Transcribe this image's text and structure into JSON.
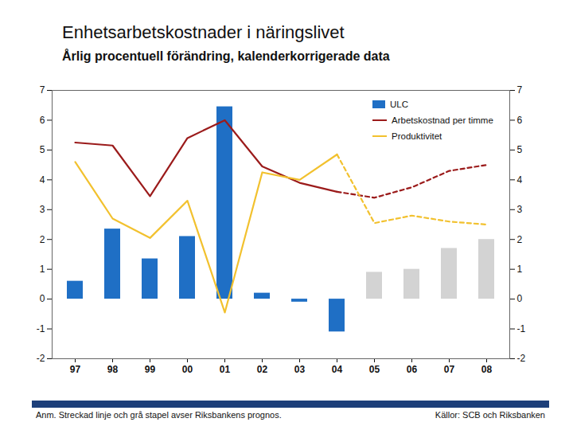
{
  "chart_data": {
    "type": "bar",
    "title": "Enhetsarbetskostnader i näringslivet",
    "subtitle": "Årlig procentuell förändring, kalenderkorrigerade data",
    "note": "Anm. Streckad linje och grå stapel avser Riksbankens prognos.",
    "source": "Källor: SCB och Riksbanken",
    "categories": [
      "97",
      "98",
      "99",
      "00",
      "01",
      "02",
      "03",
      "04",
      "05",
      "06",
      "07",
      "08"
    ],
    "series": [
      {
        "name": "ULC",
        "type": "bar",
        "colors": [
          "#1f6fc5",
          "#1f6fc5",
          "#1f6fc5",
          "#1f6fc5",
          "#1f6fc5",
          "#1f6fc5",
          "#1f6fc5",
          "#1f6fc5",
          "#d3d3d3",
          "#d3d3d3",
          "#d3d3d3",
          "#d3d3d3"
        ],
        "values": [
          0.6,
          2.35,
          1.35,
          2.1,
          6.45,
          0.2,
          -0.1,
          -1.1,
          0.9,
          1.0,
          1.7,
          2.0
        ]
      },
      {
        "name": "Arbetskostnad per timme",
        "type": "line",
        "color": "#9b1b1b",
        "line_style": "solid",
        "values": [
          5.25,
          5.15,
          3.45,
          5.4,
          6.0,
          4.45,
          3.9,
          3.6,
          null,
          null,
          null,
          null
        ]
      },
      {
        "name": "Arbetskostnad per timme",
        "type": "line",
        "color": "#9b1b1b",
        "line_style": "dashed",
        "values": [
          null,
          null,
          null,
          null,
          null,
          null,
          null,
          3.6,
          3.4,
          3.75,
          4.3,
          4.5
        ]
      },
      {
        "name": "Produktivitet",
        "type": "line",
        "color": "#f2c12e",
        "line_style": "solid",
        "values": [
          4.6,
          2.7,
          2.05,
          3.3,
          -0.45,
          4.25,
          4.0,
          4.85,
          null,
          null,
          null,
          null
        ]
      },
      {
        "name": "Produktivitet",
        "type": "line",
        "color": "#f2c12e",
        "line_style": "dashed",
        "values": [
          null,
          null,
          null,
          null,
          null,
          null,
          null,
          4.85,
          2.55,
          2.8,
          2.6,
          2.5
        ]
      }
    ],
    "ylim": [
      -2,
      7
    ],
    "yticks": [
      -2,
      -1,
      0,
      1,
      2,
      3,
      4,
      5,
      6,
      7
    ],
    "legend": "top-right",
    "grid": false
  }
}
